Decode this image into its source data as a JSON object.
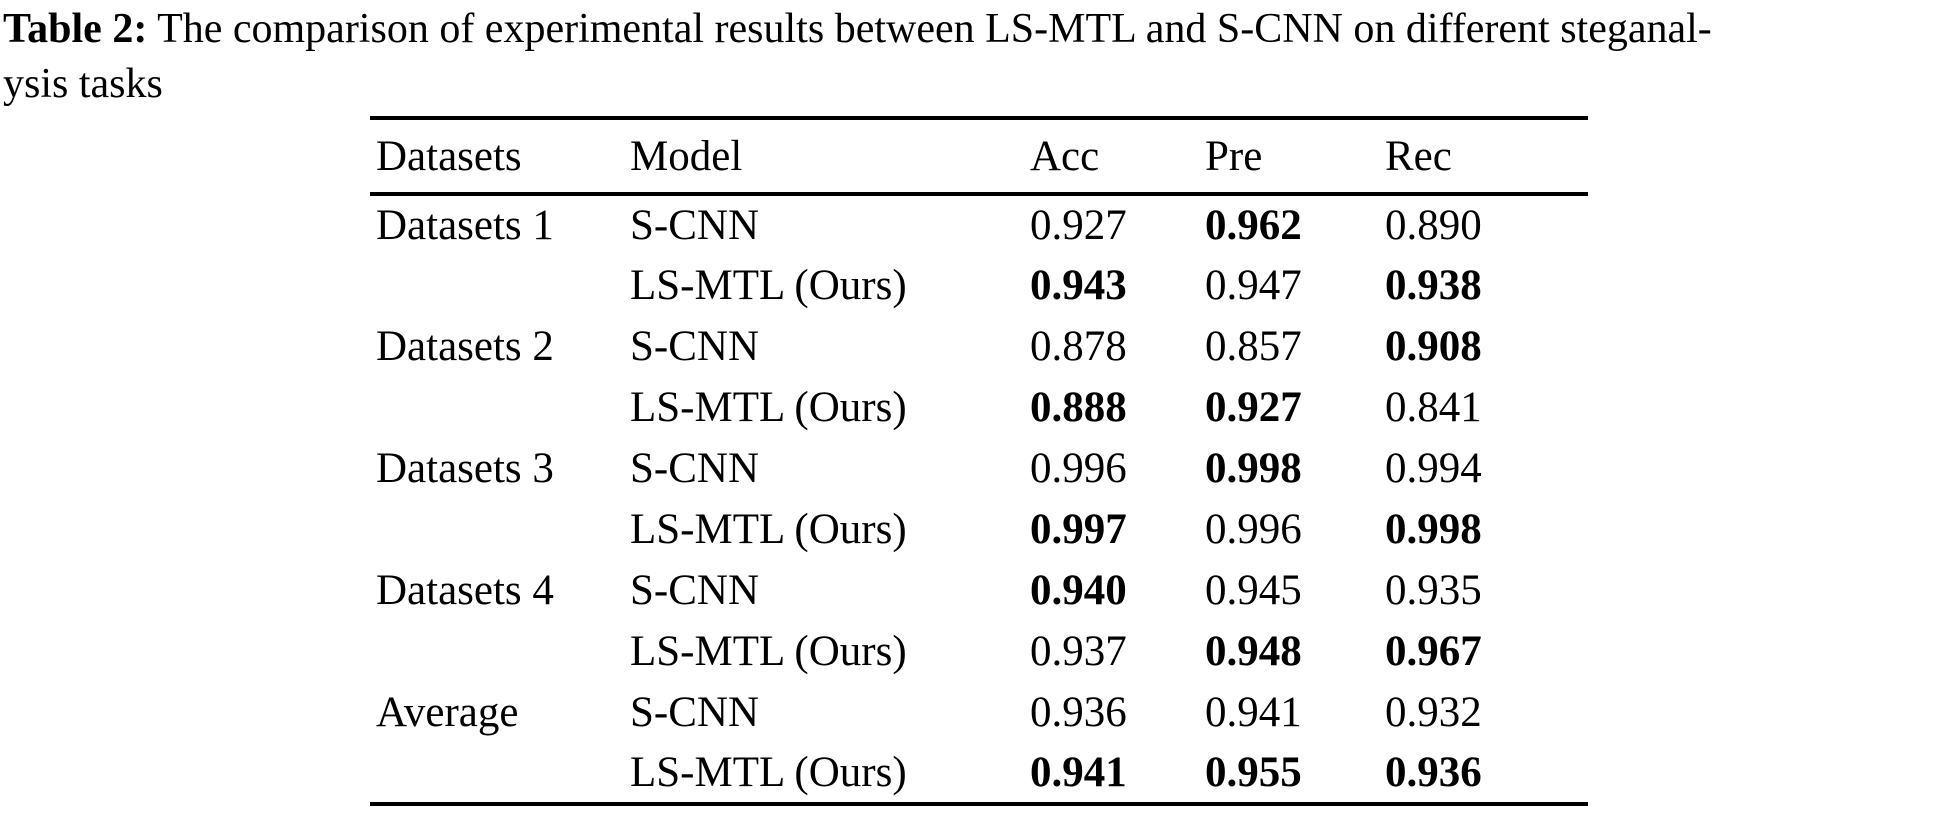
{
  "caption": {
    "label": "Table 2:",
    "line1_rest": " The comparison of experimental results between LS-MTL and S-CNN on different steganal-",
    "line2": "ysis tasks"
  },
  "table": {
    "columns": [
      "Datasets",
      "Model",
      "Acc",
      "Pre",
      "Rec"
    ],
    "rows": [
      {
        "cells": [
          {
            "text": "Datasets 1",
            "bold": false
          },
          {
            "text": "S-CNN",
            "bold": false
          },
          {
            "text": "0.927",
            "bold": false
          },
          {
            "text": "0.962",
            "bold": true
          },
          {
            "text": "0.890",
            "bold": false
          }
        ]
      },
      {
        "cells": [
          {
            "text": "",
            "bold": false
          },
          {
            "text": "LS-MTL (Ours)",
            "bold": false
          },
          {
            "text": "0.943",
            "bold": true
          },
          {
            "text": "0.947",
            "bold": false
          },
          {
            "text": "0.938",
            "bold": true
          }
        ]
      },
      {
        "cells": [
          {
            "text": "Datasets 2",
            "bold": false
          },
          {
            "text": "S-CNN",
            "bold": false
          },
          {
            "text": "0.878",
            "bold": false
          },
          {
            "text": "0.857",
            "bold": false
          },
          {
            "text": "0.908",
            "bold": true
          }
        ]
      },
      {
        "cells": [
          {
            "text": "",
            "bold": false
          },
          {
            "text": "LS-MTL (Ours)",
            "bold": false
          },
          {
            "text": "0.888",
            "bold": true
          },
          {
            "text": "0.927",
            "bold": true
          },
          {
            "text": "0.841",
            "bold": false
          }
        ]
      },
      {
        "cells": [
          {
            "text": "Datasets 3",
            "bold": false
          },
          {
            "text": "S-CNN",
            "bold": false
          },
          {
            "text": "0.996",
            "bold": false
          },
          {
            "text": "0.998",
            "bold": true
          },
          {
            "text": "0.994",
            "bold": false
          }
        ]
      },
      {
        "cells": [
          {
            "text": "",
            "bold": false
          },
          {
            "text": "LS-MTL (Ours)",
            "bold": false
          },
          {
            "text": "0.997",
            "bold": true
          },
          {
            "text": "0.996",
            "bold": false
          },
          {
            "text": "0.998",
            "bold": true
          }
        ]
      },
      {
        "cells": [
          {
            "text": "Datasets 4",
            "bold": false
          },
          {
            "text": "S-CNN",
            "bold": false
          },
          {
            "text": "0.940",
            "bold": true
          },
          {
            "text": "0.945",
            "bold": false
          },
          {
            "text": "0.935",
            "bold": false
          }
        ]
      },
      {
        "cells": [
          {
            "text": "",
            "bold": false
          },
          {
            "text": "LS-MTL (Ours)",
            "bold": false
          },
          {
            "text": "0.937",
            "bold": false
          },
          {
            "text": "0.948",
            "bold": true
          },
          {
            "text": "0.967",
            "bold": true
          }
        ]
      },
      {
        "cells": [
          {
            "text": "Average",
            "bold": false
          },
          {
            "text": "S-CNN",
            "bold": false
          },
          {
            "text": "0.936",
            "bold": false
          },
          {
            "text": "0.941",
            "bold": false
          },
          {
            "text": "0.932",
            "bold": false
          }
        ]
      },
      {
        "cells": [
          {
            "text": "",
            "bold": false
          },
          {
            "text": "LS-MTL (Ours)",
            "bold": false
          },
          {
            "text": "0.941",
            "bold": true
          },
          {
            "text": "0.955",
            "bold": true
          },
          {
            "text": "0.936",
            "bold": true
          }
        ]
      }
    ]
  },
  "colors": {
    "text": "#000000",
    "background": "#ffffff",
    "rule": "#000000"
  }
}
